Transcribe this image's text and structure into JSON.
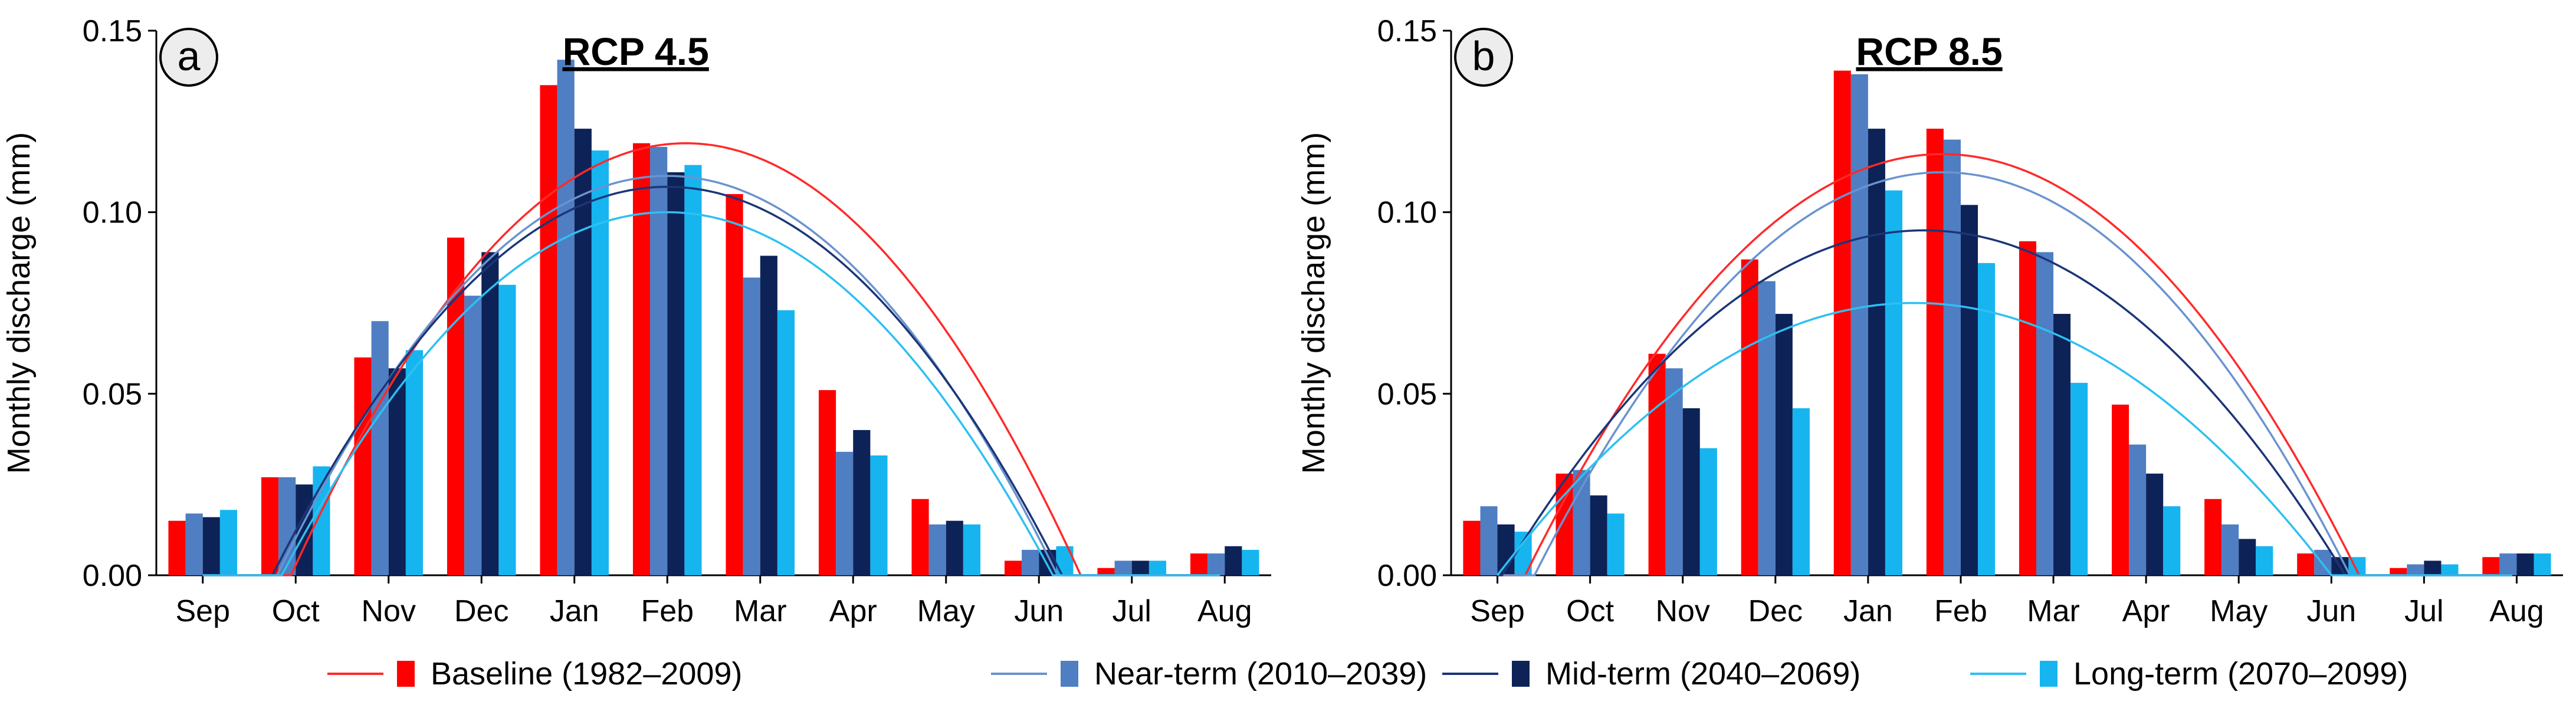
{
  "series_styles": [
    {
      "key": "baseline",
      "label": "Baseline (1982–2009)",
      "bar_color": "#ff0000",
      "line_color": "#ff2a2a"
    },
    {
      "key": "near",
      "label": "Near-term (2010–2039)",
      "bar_color": "#4f7ec2",
      "line_color": "#6a93cf"
    },
    {
      "key": "mid",
      "label": "Mid-term (2040–2069)",
      "bar_color": "#0d2257",
      "line_color": "#1b3578"
    },
    {
      "key": "long",
      "label": "Long-term (2070–2099)",
      "bar_color": "#16b5f0",
      "line_color": "#2ec0f2"
    }
  ],
  "chart_data": [
    {
      "type": "bar",
      "panel_letter": "a",
      "title": "RCP 4.5",
      "ylabel": "Monthly discharge (mm)",
      "xlabel": "",
      "ylim": [
        0,
        0.15
      ],
      "yticks": [
        "0.00",
        "0.05",
        "0.10",
        "0.15"
      ],
      "categories": [
        "Sep",
        "Oct",
        "Nov",
        "Dec",
        "Jan",
        "Feb",
        "Mar",
        "Apr",
        "May",
        "Jun",
        "Jul",
        "Aug"
      ],
      "series": [
        {
          "name": "Baseline (1982–2009)",
          "values": [
            0.015,
            0.027,
            0.06,
            0.093,
            0.135,
            0.119,
            0.105,
            0.051,
            0.021,
            0.004,
            0.002,
            0.006
          ]
        },
        {
          "name": "Near-term (2010–2039)",
          "values": [
            0.017,
            0.027,
            0.07,
            0.077,
            0.142,
            0.118,
            0.082,
            0.034,
            0.014,
            0.007,
            0.004,
            0.006
          ]
        },
        {
          "name": "Mid-term (2040–2069)",
          "values": [
            0.016,
            0.025,
            0.057,
            0.089,
            0.123,
            0.111,
            0.088,
            0.04,
            0.015,
            0.007,
            0.004,
            0.008
          ]
        },
        {
          "name": "Long-term (2070–2099)",
          "values": [
            0.018,
            0.03,
            0.062,
            0.08,
            0.117,
            0.113,
            0.073,
            0.033,
            0.014,
            0.008,
            0.004,
            0.007
          ]
        }
      ],
      "fit_curves": [
        {
          "name": "Baseline (1982–2009)",
          "peak_month_index": 5.2,
          "peak_value": 0.119,
          "half_width": 4.25
        },
        {
          "name": "Near-term (2010–2039)",
          "peak_month_index": 5.0,
          "peak_value": 0.11,
          "half_width": 4.2
        },
        {
          "name": "Mid-term (2040–2069)",
          "peak_month_index": 5.0,
          "peak_value": 0.107,
          "half_width": 4.25
        },
        {
          "name": "Long-term (2070–2099)",
          "peak_month_index": 5.0,
          "peak_value": 0.1,
          "half_width": 4.15
        }
      ],
      "legend": "bottom"
    },
    {
      "type": "bar",
      "panel_letter": "b",
      "title": "RCP 8.5",
      "ylabel": "Monthly discharge (mm)",
      "xlabel": "",
      "ylim": [
        0,
        0.15
      ],
      "yticks": [
        "0.00",
        "0.05",
        "0.10",
        "0.15"
      ],
      "categories": [
        "Sep",
        "Oct",
        "Nov",
        "Dec",
        "Jan",
        "Feb",
        "Mar",
        "Apr",
        "May",
        "Jun",
        "Jul",
        "Aug"
      ],
      "series": [
        {
          "name": "Baseline (1982–2009)",
          "values": [
            0.015,
            0.028,
            0.061,
            0.087,
            0.139,
            0.123,
            0.092,
            0.047,
            0.021,
            0.006,
            0.002,
            0.005
          ]
        },
        {
          "name": "Near-term (2010–2039)",
          "values": [
            0.019,
            0.029,
            0.057,
            0.081,
            0.138,
            0.12,
            0.089,
            0.036,
            0.014,
            0.007,
            0.003,
            0.006
          ]
        },
        {
          "name": "Mid-term (2040–2069)",
          "values": [
            0.014,
            0.022,
            0.046,
            0.072,
            0.123,
            0.102,
            0.072,
            0.028,
            0.01,
            0.005,
            0.004,
            0.006
          ]
        },
        {
          "name": "Long-term (2070–2099)",
          "values": [
            0.012,
            0.017,
            0.035,
            0.046,
            0.106,
            0.086,
            0.053,
            0.019,
            0.008,
            0.005,
            0.003,
            0.006
          ]
        }
      ],
      "fit_curves": [
        {
          "name": "Baseline (1982–2009)",
          "peak_month_index": 4.8,
          "peak_value": 0.116,
          "half_width": 4.5
        },
        {
          "name": "Near-term (2010–2039)",
          "peak_month_index": 4.8,
          "peak_value": 0.111,
          "half_width": 4.4
        },
        {
          "name": "Mid-term (2040–2069)",
          "peak_month_index": 4.6,
          "peak_value": 0.095,
          "half_width": 4.55
        },
        {
          "name": "Long-term (2070–2099)",
          "peak_month_index": 4.5,
          "peak_value": 0.075,
          "half_width": 4.5
        }
      ],
      "legend": "bottom"
    }
  ]
}
